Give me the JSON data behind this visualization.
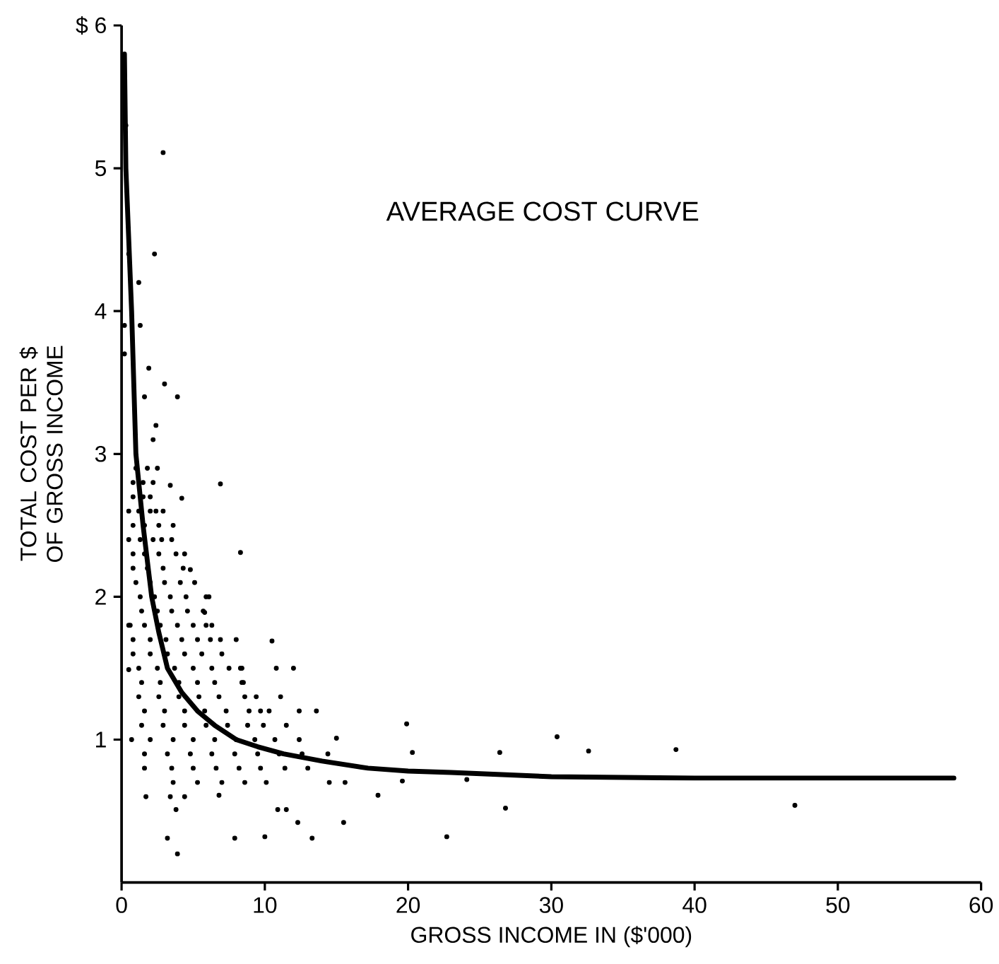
{
  "chart_data": {
    "type": "scatter",
    "title": "AVERAGE COST CURVE",
    "xlabel": "GROSS INCOME IN ($'000)",
    "ylabel": "TOTAL COST PER $ OF GROSS INCOME",
    "xlim": [
      0,
      60
    ],
    "ylim": [
      0,
      6
    ],
    "xticks": [
      0,
      10,
      20,
      30,
      40,
      50,
      60
    ],
    "yticks": [
      1,
      2,
      3,
      4,
      5,
      {
        "value": 6,
        "label": "$ 6"
      }
    ],
    "series": [
      {
        "marker": "circle",
        "color": "#000000",
        "x": [
          2.9,
          2.3,
          0.3,
          0.5,
          1.2,
          0.2,
          1.3,
          1.9,
          3.0,
          3.9,
          1.6,
          2.4,
          2.2,
          0.2,
          6.9,
          3.4,
          4.2,
          2.9,
          3.6,
          3.5,
          8.3,
          4.4,
          4.8,
          5.9,
          5.8,
          5.9,
          0.6,
          6.9,
          8.0,
          10.5,
          0.5,
          8.3,
          10.8,
          12.0,
          8.5,
          9.4,
          11.1,
          10.3,
          12.4,
          13.6,
          11.5,
          19.9,
          0.7,
          15.0,
          20.3,
          1.6,
          14.5,
          15.6,
          19.6,
          17.9,
          1.7,
          3.4,
          4.4,
          6.8,
          3.8,
          10.9,
          11.5,
          12.3,
          15.5,
          3.2,
          7.9,
          10.0,
          13.3,
          22.7,
          3.9,
          24.1,
          26.4,
          30.4,
          32.6,
          38.7,
          26.8,
          47.0,
          1.0,
          1.8,
          2.5,
          0.8,
          1.5,
          2.2,
          0.8,
          1.5,
          2.0,
          0.5,
          1.2,
          2.0,
          2.4,
          0.8,
          1.6,
          2.6,
          0.5,
          1.3,
          2.2,
          2.8,
          0.8,
          1.6,
          2.6,
          3.8,
          0.8,
          1.8,
          2.9,
          4.3,
          1.0,
          2.0,
          3.0,
          4.1,
          5.1,
          1.3,
          2.3,
          3.4,
          4.5,
          6.1,
          1.4,
          2.5,
          3.5,
          4.6,
          5.7,
          0.5,
          1.6,
          2.7,
          3.9,
          5.0,
          6.3,
          0.8,
          2.0,
          3.1,
          4.2,
          5.3,
          6.2,
          0.8,
          2.0,
          3.2,
          4.4,
          5.6,
          7.0,
          1.2,
          2.5,
          3.7,
          5.0,
          6.3,
          7.5,
          8.4,
          1.4,
          2.7,
          4.0,
          5.3,
          6.5,
          8.4,
          1.2,
          2.6,
          4.0,
          5.4,
          6.8,
          8.6,
          1.6,
          3.0,
          4.4,
          5.8,
          7.3,
          8.9,
          9.7,
          1.4,
          2.9,
          4.4,
          5.9,
          7.4,
          8.8,
          9.9,
          2.0,
          3.6,
          5.0,
          6.5,
          8.0,
          9.3,
          10.7,
          12.4,
          3.2,
          4.8,
          6.3,
          7.9,
          9.5,
          11.0,
          12.6,
          14.4,
          1.6,
          3.5,
          5.0,
          6.6,
          8.2,
          9.7,
          11.4,
          13.0,
          3.6,
          5.3,
          7.0,
          8.6,
          10.1
        ],
        "values": [
          5.11,
          4.4,
          5.3,
          4.4,
          4.2,
          3.9,
          3.9,
          3.6,
          3.49,
          3.4,
          3.4,
          3.2,
          3.1,
          3.7,
          2.79,
          2.78,
          2.69,
          2.6,
          2.5,
          2.4,
          2.31,
          2.3,
          2.19,
          2.0,
          1.89,
          1.8,
          1.8,
          1.7,
          1.7,
          1.69,
          1.49,
          1.5,
          1.5,
          1.5,
          1.4,
          1.3,
          1.3,
          1.2,
          1.2,
          1.2,
          1.1,
          1.11,
          1.0,
          1.01,
          0.91,
          0.9,
          0.7,
          0.7,
          0.71,
          0.61,
          0.6,
          0.6,
          0.6,
          0.61,
          0.51,
          0.51,
          0.51,
          0.42,
          0.42,
          0.31,
          0.31,
          0.32,
          0.31,
          0.32,
          0.2,
          0.72,
          0.91,
          1.02,
          0.92,
          0.93,
          0.52,
          0.54,
          2.9,
          2.9,
          2.9,
          2.8,
          2.8,
          2.8,
          2.7,
          2.7,
          2.7,
          2.6,
          2.6,
          2.6,
          2.6,
          2.5,
          2.5,
          2.5,
          2.4,
          2.4,
          2.4,
          2.4,
          2.3,
          2.3,
          2.3,
          2.3,
          2.2,
          2.2,
          2.2,
          2.2,
          2.1,
          2.1,
          2.1,
          2.1,
          2.1,
          2.0,
          2.0,
          2.0,
          2.0,
          2.0,
          1.9,
          1.9,
          1.9,
          1.9,
          1.9,
          1.8,
          1.8,
          1.8,
          1.8,
          1.8,
          1.8,
          1.7,
          1.7,
          1.7,
          1.7,
          1.7,
          1.7,
          1.6,
          1.6,
          1.6,
          1.6,
          1.6,
          1.6,
          1.5,
          1.5,
          1.5,
          1.5,
          1.5,
          1.5,
          1.5,
          1.4,
          1.4,
          1.4,
          1.4,
          1.4,
          1.4,
          1.3,
          1.3,
          1.3,
          1.3,
          1.3,
          1.3,
          1.2,
          1.2,
          1.2,
          1.2,
          1.2,
          1.2,
          1.2,
          1.1,
          1.1,
          1.1,
          1.1,
          1.1,
          1.1,
          1.1,
          1.0,
          1.0,
          1.0,
          1.0,
          1.0,
          1.0,
          1.0,
          1.0,
          0.9,
          0.9,
          0.9,
          0.9,
          0.9,
          0.9,
          0.9,
          0.9,
          0.8,
          0.8,
          0.8,
          0.8,
          0.8,
          0.8,
          0.8,
          0.8,
          0.7,
          0.7,
          0.7,
          0.7,
          0.7
        ]
      },
      {
        "type": "line",
        "marker": "none",
        "color": "#000000",
        "x": [
          0.2,
          0.3,
          0.7,
          1.0,
          1.5,
          2.1,
          2.6,
          3.2,
          4.2,
          5.3,
          6.5,
          8.0,
          9.5,
          11.3,
          14,
          17.2,
          20,
          23,
          30,
          40,
          50,
          58.1
        ],
        "values": [
          5.8,
          5.0,
          4.0,
          3.0,
          2.5,
          2.0,
          1.75,
          1.5,
          1.33,
          1.2,
          1.1,
          1.0,
          0.95,
          0.9,
          0.85,
          0.8,
          0.78,
          0.77,
          0.74,
          0.73,
          0.73,
          0.73
        ]
      }
    ]
  }
}
